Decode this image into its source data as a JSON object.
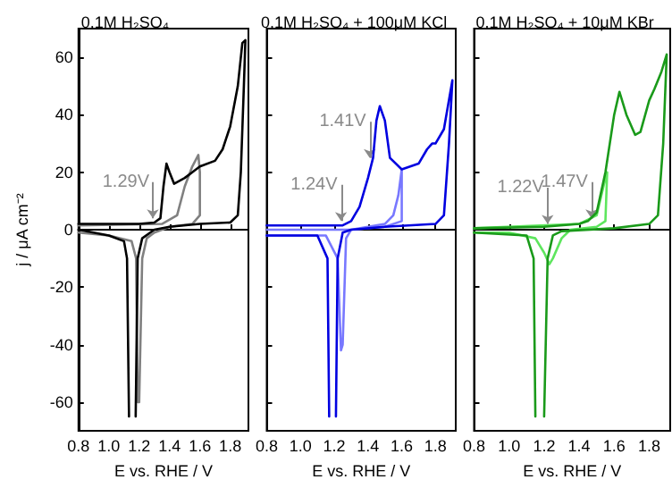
{
  "chart_data": [
    {
      "type": "line",
      "title": "0.1M H₂SO₄",
      "xlabel": "E vs. RHE / V",
      "ylabel": "j / μA cm⁻²",
      "marker": "none",
      "line_style": "solid",
      "xlim": [
        0.8,
        1.92
      ],
      "ylim": [
        -70,
        70
      ],
      "xticks": [
        {
          "value": 0.8,
          "label": "0.8"
        },
        {
          "value": 1,
          "label": "1.0"
        },
        {
          "value": 1.2,
          "label": "1.2"
        },
        {
          "value": 1.4,
          "label": "1.4"
        },
        {
          "value": 1.6,
          "label": "1.6"
        },
        {
          "value": 1.8,
          "label": "1.8"
        }
      ],
      "yticks": [
        -60,
        -40,
        -20,
        0,
        20,
        40,
        60
      ],
      "annotations": [
        {
          "text": "1.29V",
          "x": 1.29,
          "y": 4
        }
      ],
      "series": [
        {
          "color": "#000000",
          "x": [
            0.8,
            1.0,
            1.2,
            1.3,
            1.34,
            1.36,
            1.38,
            1.4,
            1.43,
            1.5,
            1.55,
            1.6,
            1.7,
            1.75,
            1.8,
            1.85,
            1.88,
            1.9,
            1.89,
            1.87,
            1.85,
            1.8,
            1.6,
            1.4,
            1.3,
            1.22,
            1.19,
            1.177,
            null,
            1.133,
            1.12,
            1.1,
            1.0,
            0.9,
            0.8
          ],
          "values": [
            2,
            2,
            2,
            2.5,
            4,
            15,
            23,
            20,
            16,
            18,
            20,
            22,
            24,
            28,
            36,
            50,
            65,
            66,
            50,
            20,
            5,
            2.5,
            2,
            1,
            0,
            -3,
            -10,
            -65,
            null,
            -65,
            -10,
            -4,
            -2,
            -1,
            0
          ]
        },
        {
          "color": "#808080",
          "x": [
            0.8,
            1.35,
            1.45,
            1.5,
            1.55,
            1.59,
            1.6,
            1.6,
            1.55,
            1.4,
            1.3,
            1.25,
            1.22,
            1.2,
            1.19,
            1.18,
            1.15,
            1.0,
            0.8
          ],
          "values": [
            1.5,
            2,
            5,
            15,
            22,
            26,
            20,
            5,
            2,
            1,
            -1,
            -3,
            -10,
            -60,
            -60,
            -10,
            -4,
            -2,
            -1
          ]
        }
      ]
    },
    {
      "type": "line",
      "title": "0.1M H₂SO₄ + 100μM KCl",
      "xlabel": "E vs. RHE / V",
      "marker": "none",
      "line_style": "solid",
      "tick_labels": "x",
      "xlim": [
        0.8,
        1.92
      ],
      "ylim": [
        -70,
        70
      ],
      "xticks": [
        {
          "value": 0.8,
          "label": "0.8"
        },
        {
          "value": 1,
          "label": "1.0"
        },
        {
          "value": 1.2,
          "label": "1.2"
        },
        {
          "value": 1.4,
          "label": "1.4"
        },
        {
          "value": 1.6,
          "label": "1.6"
        },
        {
          "value": 1.8,
          "label": "1.8"
        }
      ],
      "yticks": [
        -60,
        -40,
        -20,
        0,
        20,
        40,
        60
      ],
      "annotations": [
        {
          "text": "1.41V",
          "x": 1.41,
          "y": 25
        },
        {
          "text": "1.24V",
          "x": 1.24,
          "y": 3
        }
      ],
      "series": [
        {
          "color": "#0000e0",
          "x": [
            0.8,
            1.25,
            1.3,
            1.35,
            1.4,
            1.43,
            1.45,
            1.47,
            1.5,
            1.53,
            1.6,
            1.7,
            1.75,
            1.78,
            1.8,
            1.85,
            1.9,
            1.88,
            1.85,
            1.8,
            1.5,
            1.3,
            1.25,
            1.22,
            1.21,
            null,
            1.17,
            1.16,
            1.1,
            0.8
          ],
          "values": [
            1.5,
            1.5,
            3,
            8,
            18,
            25,
            38,
            43,
            38,
            25,
            21,
            23,
            28,
            30,
            30,
            35,
            52,
            30,
            5,
            2,
            1,
            0,
            -1,
            -10,
            -65,
            null,
            -65,
            -10,
            -2,
            -2
          ]
        },
        {
          "color": "#7878ff",
          "x": [
            0.8,
            1.3,
            1.5,
            1.55,
            1.58,
            1.6,
            1.6,
            1.5,
            1.3,
            1.27,
            1.25,
            1.24,
            1.22,
            1.15,
            0.8
          ],
          "values": [
            0,
            0,
            2,
            5,
            12,
            21,
            3,
            1,
            0,
            -3,
            -40,
            -42,
            -10,
            -2,
            -2
          ]
        }
      ]
    },
    {
      "type": "line",
      "title": "0.1M H₂SO₄ + 10μM KBr",
      "xlabel": "E vs. RHE / V",
      "marker": "none",
      "line_style": "solid",
      "tick_labels": "x",
      "xlim": [
        0.8,
        1.92
      ],
      "ylim": [
        -70,
        70
      ],
      "xticks": [
        {
          "value": 0.8,
          "label": "0.8"
        },
        {
          "value": 1,
          "label": "1.0"
        },
        {
          "value": 1.2,
          "label": "1.2"
        },
        {
          "value": 1.4,
          "label": "1.4"
        },
        {
          "value": 1.6,
          "label": "1.6"
        },
        {
          "value": 1.8,
          "label": "1.8"
        }
      ],
      "yticks": [
        -60,
        -40,
        -20,
        0,
        20,
        40,
        60
      ],
      "annotations": [
        {
          "text": "1.47V",
          "x": 1.47,
          "y": 4
        },
        {
          "text": "1.22V",
          "x": 1.22,
          "y": 2
        }
      ],
      "series": [
        {
          "color": "#1a9a1a",
          "x": [
            0.8,
            1.2,
            1.4,
            1.45,
            1.5,
            1.55,
            1.6,
            1.63,
            1.67,
            1.72,
            1.75,
            1.8,
            1.83,
            1.87,
            1.9,
            1.88,
            1.85,
            1.8,
            1.6,
            1.3,
            1.25,
            1.22,
            1.2,
            null,
            1.15,
            1.14,
            1.1,
            0.8
          ],
          "values": [
            0.5,
            1,
            2,
            3,
            6,
            20,
            40,
            48,
            40,
            33,
            34,
            45,
            49,
            55,
            61,
            30,
            5,
            2,
            0.5,
            -0.5,
            -2,
            -10,
            -65,
            null,
            -65,
            -10,
            -2,
            -1
          ]
        },
        {
          "color": "#5ee65e",
          "x": [
            0.8,
            1.4,
            1.5,
            1.55,
            1.56,
            1.55,
            1.5,
            1.35,
            1.3,
            1.25,
            1.23,
            1.2,
            1.15,
            1.0,
            0.8
          ],
          "values": [
            0.5,
            2,
            5,
            18,
            20,
            3,
            1,
            0,
            -3,
            -10,
            -12,
            -8,
            -3,
            -1,
            -1
          ]
        }
      ]
    }
  ]
}
